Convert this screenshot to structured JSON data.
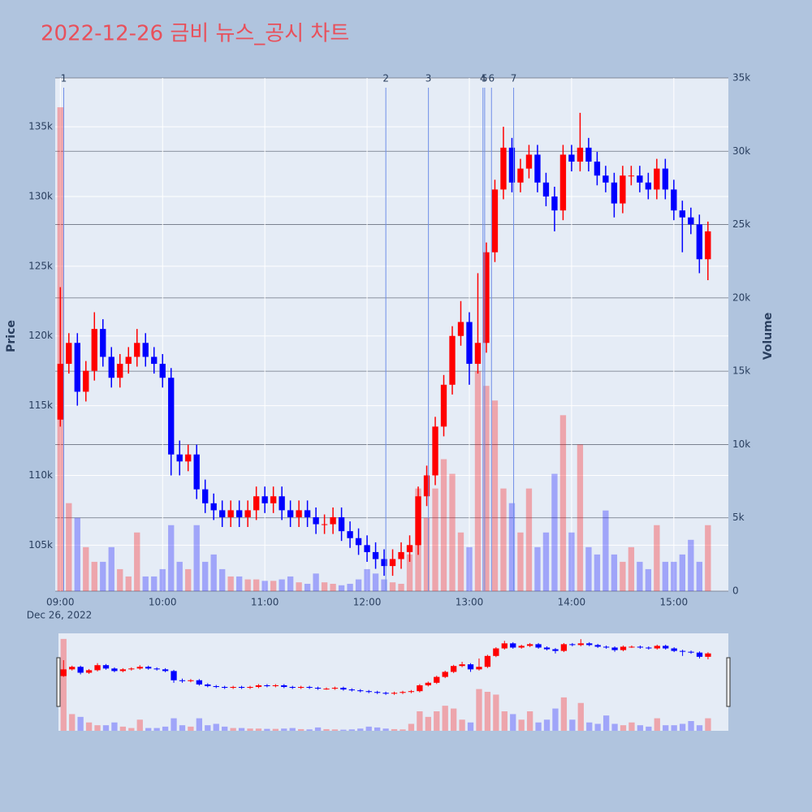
{
  "chart_data": {
    "type": "candlestick",
    "title": "2022-12-26 금비 뉴스_공시 차트",
    "x": [
      "09:00",
      "09:05",
      "09:10",
      "09:15",
      "09:20",
      "09:25",
      "09:30",
      "09:35",
      "09:40",
      "09:45",
      "09:50",
      "09:55",
      "10:00",
      "10:05",
      "10:10",
      "10:15",
      "10:20",
      "10:25",
      "10:30",
      "10:35",
      "10:40",
      "10:45",
      "10:50",
      "10:55",
      "11:00",
      "11:05",
      "11:10",
      "11:15",
      "11:20",
      "11:25",
      "11:30",
      "11:35",
      "11:40",
      "11:45",
      "11:50",
      "11:55",
      "12:00",
      "12:05",
      "12:10",
      "12:15",
      "12:20",
      "12:25",
      "12:30",
      "12:35",
      "12:40",
      "12:45",
      "12:50",
      "12:55",
      "13:00",
      "13:05",
      "13:10",
      "13:15",
      "13:20",
      "13:25",
      "13:30",
      "13:35",
      "13:40",
      "13:45",
      "13:50",
      "13:55",
      "14:00",
      "14:05",
      "14:10",
      "14:15",
      "14:20",
      "14:25",
      "14:30",
      "14:35",
      "14:40",
      "14:45",
      "14:50",
      "14:55",
      "15:00",
      "15:05",
      "15:10",
      "15:15",
      "15:20"
    ],
    "open": [
      114000,
      118000,
      119500,
      116000,
      117500,
      120500,
      118500,
      117000,
      118000,
      118500,
      119500,
      118500,
      118000,
      117000,
      111500,
      111000,
      111500,
      109000,
      108000,
      107500,
      107000,
      107500,
      107000,
      107500,
      108500,
      108000,
      108500,
      107500,
      107000,
      107500,
      107000,
      106500,
      106500,
      107000,
      106000,
      105500,
      105000,
      104500,
      104000,
      103500,
      104000,
      104500,
      105000,
      108500,
      110000,
      113500,
      116500,
      120000,
      121000,
      118000,
      119500,
      126000,
      130500,
      133500,
      131000,
      132000,
      133000,
      131000,
      130000,
      129000,
      133000,
      132500,
      133500,
      132500,
      131500,
      131000,
      129500,
      131500,
      131500,
      131000,
      130500,
      132000,
      130500,
      129000,
      128500,
      128000,
      125500
    ],
    "high": [
      123500,
      120200,
      120200,
      118200,
      121700,
      121200,
      119200,
      118700,
      119200,
      120500,
      120200,
      119200,
      118700,
      117700,
      112500,
      112200,
      112200,
      109700,
      108700,
      108200,
      108200,
      108200,
      108200,
      109200,
      109200,
      109200,
      109200,
      108200,
      108200,
      108200,
      107700,
      107200,
      107700,
      107700,
      106700,
      106200,
      105700,
      105200,
      104700,
      104700,
      105200,
      105700,
      109200,
      110700,
      114200,
      117200,
      120700,
      122500,
      121700,
      124500,
      126700,
      131200,
      135000,
      134200,
      132700,
      133700,
      133700,
      131700,
      130700,
      133700,
      133700,
      136000,
      134200,
      133200,
      132200,
      131700,
      132200,
      132200,
      132200,
      131700,
      132700,
      132700,
      131200,
      129700,
      129200,
      128700,
      128200
    ],
    "low": [
      113500,
      117300,
      115000,
      115300,
      116800,
      117800,
      116300,
      116300,
      117300,
      117800,
      117800,
      117300,
      116300,
      110000,
      110000,
      110300,
      108300,
      107300,
      106800,
      106300,
      106300,
      106300,
      106300,
      106800,
      107300,
      107300,
      106800,
      106300,
      106300,
      106300,
      105800,
      105800,
      105800,
      105300,
      104800,
      104300,
      103800,
      103300,
      102800,
      102800,
      103300,
      103800,
      104300,
      107800,
      109300,
      112800,
      115800,
      119300,
      116500,
      117300,
      118800,
      125300,
      129800,
      130300,
      130300,
      131300,
      130300,
      129300,
      127500,
      128300,
      131800,
      131800,
      131800,
      130800,
      130300,
      128500,
      128800,
      130800,
      130300,
      129800,
      129800,
      129800,
      128300,
      126000,
      127300,
      124500,
      124000
    ],
    "close": [
      118000,
      119500,
      116000,
      117500,
      120500,
      118500,
      117000,
      118000,
      118500,
      119500,
      118500,
      118000,
      117000,
      111500,
      111000,
      111500,
      109000,
      108000,
      107500,
      107000,
      107500,
      107000,
      107500,
      108500,
      108000,
      108500,
      107500,
      107000,
      107500,
      107000,
      106500,
      106500,
      107000,
      106000,
      105500,
      105000,
      104500,
      104000,
      103500,
      104000,
      104500,
      105000,
      108500,
      110000,
      113500,
      116500,
      120000,
      121000,
      118000,
      119500,
      126000,
      130500,
      133500,
      131000,
      132000,
      133000,
      131000,
      130000,
      129000,
      133000,
      132500,
      133500,
      132500,
      131500,
      131000,
      129500,
      131500,
      131500,
      131000,
      130500,
      132000,
      130500,
      129000,
      128500,
      128000,
      125500,
      127500
    ],
    "volume": [
      33000,
      6000,
      5000,
      3000,
      2000,
      2000,
      3000,
      1500,
      1000,
      4000,
      1000,
      1000,
      1500,
      4500,
      2000,
      1500,
      4500,
      2000,
      2500,
      1500,
      1000,
      1000,
      800,
      800,
      700,
      700,
      800,
      1000,
      600,
      500,
      1200,
      600,
      500,
      400,
      500,
      800,
      1500,
      1200,
      800,
      600,
      500,
      2500,
      7000,
      5000,
      7000,
      9000,
      8000,
      4000,
      3000,
      15000,
      14000,
      13000,
      7000,
      6000,
      4000,
      7000,
      3000,
      4000,
      8000,
      12000,
      4000,
      10000,
      3000,
      2500,
      5500,
      2500,
      2000,
      3000,
      2000,
      1500,
      4500,
      2000,
      2000,
      2500,
      3500,
      2000,
      4500
    ],
    "increasing_color": "#ff0000",
    "decreasing_color": "#0000ff",
    "xlim": [
      "08:57",
      "15:32"
    ],
    "xticks": [
      "09:00",
      "10:00",
      "11:00",
      "12:00",
      "13:00",
      "14:00",
      "15:00"
    ],
    "x_sublabel": "Dec 26, 2022",
    "ylabel": "Price",
    "ylim": [
      101700,
      138500
    ],
    "yticks": [
      {
        "value": 105000,
        "label": "105k"
      },
      {
        "value": 110000,
        "label": "110k"
      },
      {
        "value": 115000,
        "label": "115k"
      },
      {
        "value": 120000,
        "label": "120k"
      },
      {
        "value": 125000,
        "label": "125k"
      },
      {
        "value": 130000,
        "label": "130k"
      },
      {
        "value": 135000,
        "label": "135k"
      }
    ],
    "y2label": "Volume",
    "y2lim": [
      0,
      35000
    ],
    "y2ticks": [
      0,
      {
        "value": 5000,
        "label": "5k"
      },
      {
        "value": 10000,
        "label": "10k"
      },
      {
        "value": 15000,
        "label": "15k"
      },
      {
        "value": 20000,
        "label": "20k"
      },
      {
        "value": 25000,
        "label": "25k"
      },
      {
        "value": 30000,
        "label": "30k"
      },
      {
        "value": 35000,
        "label": "35k"
      }
    ],
    "grid": true,
    "events": {
      "labels": [
        "1",
        "2",
        "3",
        "4",
        "5",
        "6",
        "7"
      ],
      "x": [
        "09:02",
        "12:11",
        "12:36",
        "13:08",
        "13:09",
        "13:13",
        "13:26"
      ],
      "color": "#6f8ee8"
    },
    "rangeslider": true
  }
}
